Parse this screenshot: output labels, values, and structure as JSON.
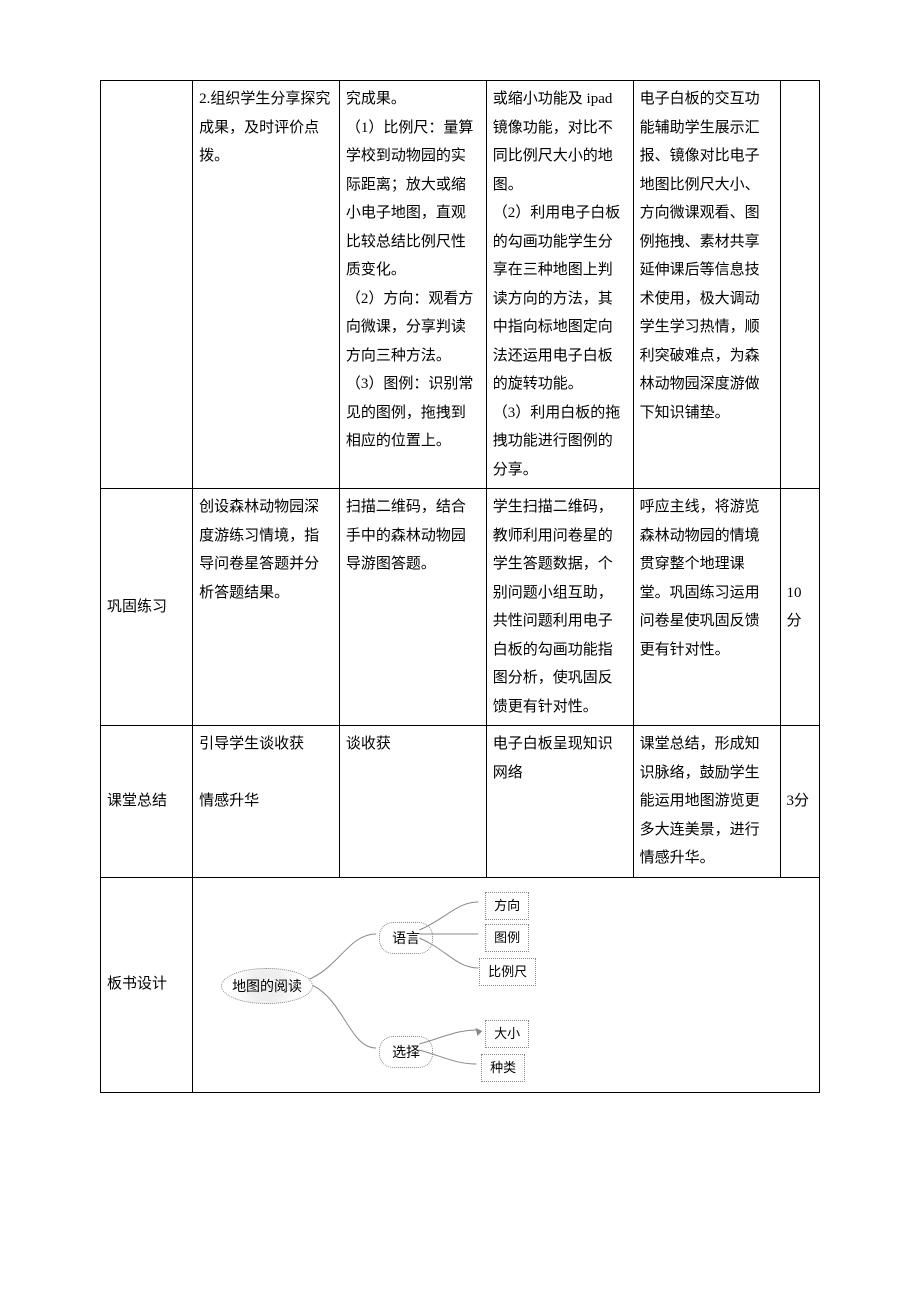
{
  "row1": {
    "c2": "2.组织学生分享探究成果，及时评价点拨。",
    "c3": "究成果。\n（1）比例尺：量算学校到动物园的实际距离；放大或缩小电子地图，直观比较总结比例尺性质变化。\n（2）方向：观看方向微课，分享判读方向三种方法。\n（3）图例：识别常见的图例，拖拽到相应的位置上。",
    "c4": "或缩小功能及 ipad镜像功能，对比不同比例尺大小的地图。\n（2）利用电子白板的勾画功能学生分享在三种地图上判读方向的方法，其中指向标地图定向法还运用电子白板的旋转功能。\n（3）利用白板的拖拽功能进行图例的分享。",
    "c5": "电子白板的交互功能辅助学生展示汇报、镜像对比电子地图比例尺大小、方向微课观看、图例拖拽、素材共享延伸课后等信息技术使用，极大调动学生学习热情，顺利突破难点，为森林动物园深度游做下知识铺垫。"
  },
  "row2": {
    "c1": "巩固练习",
    "c2": "创设森林动物园深度游练习情境，指导问卷星答题并分析答题结果。",
    "c3": "扫描二维码，结合手中的森林动物园导游图答题。",
    "c4": "学生扫描二维码，教师利用问卷星的学生答题数据，个别问题小组互助，共性问题利用电子白板的勾画功能指图分析，使巩固反馈更有针对性。",
    "c5": "呼应主线，将游览森林动物园的情境贯穿整个地理课堂。巩固练习运用问卷星使巩固反馈更有针对性。",
    "c6": "10分"
  },
  "row3": {
    "c1": "课堂总结",
    "c2": "引导学生谈收获\n\n情感升华",
    "c3": "谈收获",
    "c4": "电子白板呈现知识网络",
    "c5": "课堂总结，形成知识脉络，鼓励学生能运用地图游览更多大连美景，进行情感升华。",
    "c6": "3分"
  },
  "row4": {
    "c1": "板书设计"
  },
  "diagram": {
    "root": "地图的阅读",
    "mid1": "语言",
    "mid2": "选择",
    "leaf1": "方向",
    "leaf2": "图例",
    "leaf3": "比例尺",
    "leaf4": "大小",
    "leaf5": "种类",
    "line_color": "#888888",
    "line_width": 1
  }
}
